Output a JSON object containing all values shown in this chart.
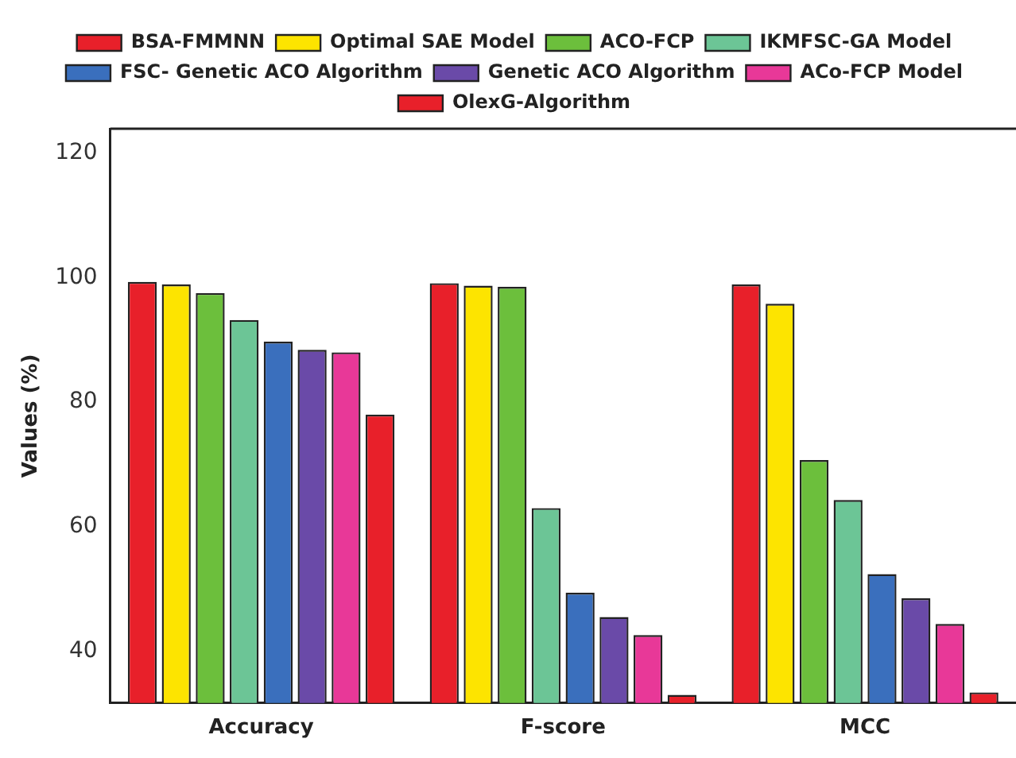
{
  "chart_data": {
    "type": "bar",
    "ylabel": "Values (%)",
    "categories": [
      "Accuracy",
      "F-score",
      "MCC"
    ],
    "series": [
      {
        "name": "BSA-FMMNN",
        "color": "#e8202a",
        "values": [
          99.3,
          99.1,
          98.9
        ]
      },
      {
        "name": "Optimal SAE Model",
        "color": "#fde400",
        "values": [
          98.9,
          98.7,
          95.8
        ]
      },
      {
        "name": "ACO-FCP",
        "color": "#6cbf3c",
        "values": [
          97.5,
          98.5,
          70.7
        ]
      },
      {
        "name": "IKMFSC-GA Model",
        "color": "#6cc596",
        "values": [
          93.2,
          63.0,
          64.3
        ]
      },
      {
        "name": "FSC- Genetic ACO Algorithm",
        "color": "#3a6fbd",
        "values": [
          89.7,
          49.4,
          52.4
        ]
      },
      {
        "name": "Genetic ACO Algorithm",
        "color": "#6a4aa8",
        "values": [
          88.4,
          45.5,
          48.5
        ]
      },
      {
        "name": "ACo-FCP Model",
        "color": "#e83898",
        "values": [
          88.0,
          42.6,
          44.4
        ]
      },
      {
        "name": "OlexG-Algorithm",
        "color": "#e8202a",
        "values": [
          78.0,
          33.0,
          33.4
        ]
      }
    ],
    "ylim": [
      31.7,
      123.9
    ],
    "yticks": [
      40,
      60,
      80,
      100,
      120
    ],
    "grid": false,
    "legend": "top"
  }
}
